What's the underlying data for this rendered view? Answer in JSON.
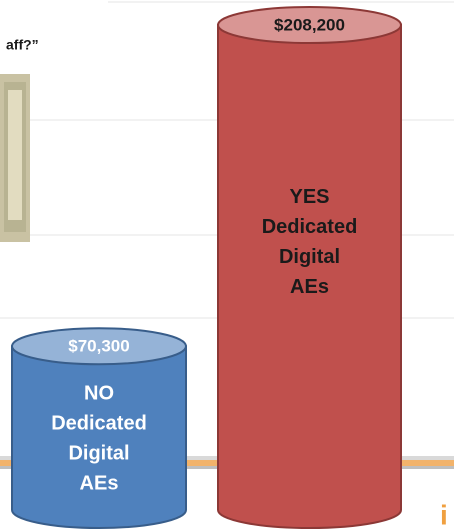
{
  "chart_data": {
    "type": "cylinder",
    "note_text": "aff?”",
    "categories": [
      [
        "NO",
        "Dedicated",
        "Digital",
        "AEs"
      ],
      [
        "YES",
        "Dedicated",
        "Digital",
        "AEs"
      ]
    ],
    "values": [
      70300,
      208200
    ],
    "value_labels": [
      "$70,300",
      "$208,200"
    ],
    "colors": [
      "#4f81bd",
      "#c0504d"
    ],
    "top_colors": [
      "#95b3d7",
      "#d99694"
    ],
    "label_colors": [
      "#ffffff",
      "#1a1a1a"
    ]
  }
}
